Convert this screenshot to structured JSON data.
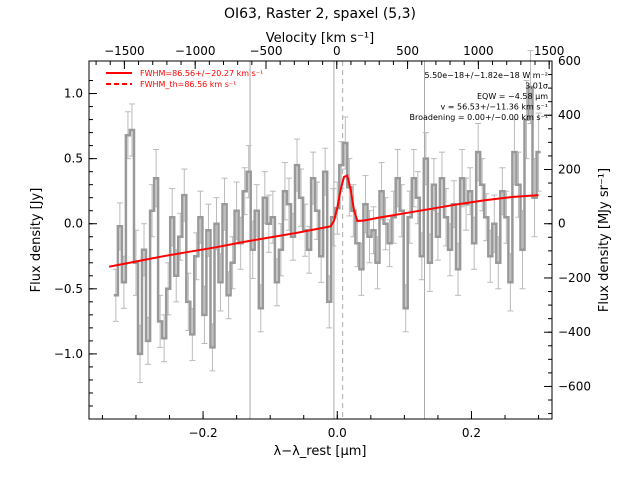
{
  "title": "OI63, Raster 2, spaxel (5,3)",
  "chart_data": {
    "type": "line",
    "title": "OI63, Raster 2, spaxel (5,3)",
    "xlabel": "λ−λ_rest [μm]",
    "ylabel": "Flux density [Jy]",
    "top_axis_label": "Velocity [km s⁻¹]",
    "right_axis_label": "Flux density [MJy sr⁻¹]",
    "xlim": [
      -0.37,
      0.32
    ],
    "ylim": [
      -1.5,
      1.25
    ],
    "top_xlim": [
      -1750,
      1520
    ],
    "right_ylim": [
      -720,
      600
    ],
    "x_ticks": [
      -0.2,
      0.0,
      0.2
    ],
    "x_tick_labels": [
      "−0.2",
      "0.0",
      "0.2"
    ],
    "y_ticks": [
      -1.0,
      -0.5,
      0.0,
      0.5,
      1.0
    ],
    "y_tick_labels": [
      "−1.0",
      "−0.5",
      "0.0",
      "0.5",
      "1.0"
    ],
    "top_ticks": [
      -1500,
      -1000,
      -500,
      0,
      500,
      1000,
      1500
    ],
    "top_tick_labels": [
      "−1500",
      "−1000",
      "−500",
      "0",
      "500",
      "1000",
      "1500"
    ],
    "right_ticks": [
      -600,
      -400,
      -200,
      0,
      200,
      400,
      600
    ],
    "right_tick_labels": [
      "−600",
      "−400",
      "−200",
      "0",
      "200",
      "400",
      "600"
    ],
    "vertical_lines": [
      {
        "x": -0.13,
        "style": "solid",
        "color": "#aaaaaa"
      },
      {
        "x": -0.005,
        "style": "solid",
        "color": "#aaaaaa"
      },
      {
        "x": 0.008,
        "style": "dashed",
        "color": "#aaaaaa"
      },
      {
        "x": 0.13,
        "style": "solid",
        "color": "#aaaaaa"
      }
    ],
    "legend": {
      "placement": "top-left",
      "entries": [
        {
          "label": "FWHM=86.56+/−20.27 km s⁻¹",
          "style": "solid",
          "color": "#ff0000"
        },
        {
          "label": "FWHM_th=86.56 km s⁻¹",
          "style": "dashed",
          "color": "#ff0000"
        }
      ]
    },
    "annotations": [
      "5.50e−18+/−1.82e−18 W m⁻²",
      "3.01σ",
      "EQW = −4.58 μm",
      "v = 56.53+/−11.36 km s⁻¹",
      "Broadening = 0.00+/−0.00 km s⁻¹"
    ],
    "series": [
      {
        "style": "step",
        "color": "#999999",
        "x": [
          -0.33,
          -0.324,
          -0.318,
          -0.312,
          -0.306,
          -0.3,
          -0.294,
          -0.288,
          -0.282,
          -0.276,
          -0.27,
          -0.264,
          -0.258,
          -0.252,
          -0.246,
          -0.24,
          -0.234,
          -0.228,
          -0.222,
          -0.216,
          -0.21,
          -0.204,
          -0.198,
          -0.192,
          -0.186,
          -0.18,
          -0.174,
          -0.168,
          -0.162,
          -0.156,
          -0.15,
          -0.144,
          -0.138,
          -0.132,
          -0.126,
          -0.12,
          -0.114,
          -0.108,
          -0.102,
          -0.096,
          -0.09,
          -0.084,
          -0.078,
          -0.072,
          -0.066,
          -0.06,
          -0.054,
          -0.048,
          -0.042,
          -0.036,
          -0.03,
          -0.024,
          -0.018,
          -0.012,
          -0.006,
          0.0,
          0.006,
          0.012,
          0.018,
          0.024,
          0.03,
          0.036,
          0.042,
          0.048,
          0.054,
          0.06,
          0.066,
          0.072,
          0.078,
          0.084,
          0.09,
          0.096,
          0.102,
          0.108,
          0.114,
          0.12,
          0.126,
          0.132,
          0.138,
          0.144,
          0.15,
          0.156,
          0.162,
          0.168,
          0.174,
          0.18,
          0.186,
          0.192,
          0.198,
          0.204,
          0.21,
          0.216,
          0.222,
          0.228,
          0.234,
          0.24,
          0.246,
          0.252,
          0.258,
          0.264,
          0.27,
          0.276,
          0.282,
          0.288,
          0.294,
          0.3
        ],
        "y": [
          -0.55,
          -0.02,
          -0.45,
          0.68,
          0.72,
          -0.3,
          -1.0,
          -0.2,
          -0.9,
          0.1,
          0.35,
          -0.75,
          -0.88,
          -0.5,
          0.05,
          -0.4,
          -0.1,
          0.22,
          -0.6,
          -0.85,
          -0.25,
          0.05,
          -0.7,
          -0.05,
          -0.95,
          0.0,
          -0.45,
          0.15,
          -0.55,
          -0.3,
          0.1,
          -0.15,
          0.25,
          0.4,
          -0.2,
          0.1,
          -0.65,
          0.2,
          0.0,
          0.05,
          -0.45,
          -0.2,
          0.25,
          0.15,
          -0.1,
          0.45,
          0.2,
          -0.05,
          -0.2,
          0.35,
          0.1,
          -0.25,
          0.4,
          -0.6,
          0.05,
          0.12,
          0.45,
          0.62,
          0.28,
          0.1,
          -0.15,
          -0.35,
          0.15,
          -0.1,
          -0.05,
          -0.3,
          0.25,
          0.0,
          -0.15,
          0.05,
          0.35,
          0.1,
          -0.65,
          0.05,
          0.35,
          0.2,
          -0.25,
          0.5,
          -0.3,
          0.3,
          -0.1,
          0.35,
          0.05,
          -0.2,
          0.15,
          -0.35,
          0.35,
          0.15,
          0.25,
          -0.15,
          0.55,
          0.3,
          0.05,
          -0.25,
          0.0,
          -0.3,
          0.25,
          0.05,
          -0.45,
          0.55,
          0.3,
          -0.2,
          0.8,
          1.05,
          0.2,
          0.55
        ],
        "err": [
          0.2,
          0.18,
          0.2,
          0.18,
          0.2,
          0.25,
          0.22,
          0.2,
          0.18,
          0.2,
          0.22,
          0.2,
          0.18,
          0.2,
          0.22,
          0.2,
          0.18,
          0.2,
          0.22,
          0.2,
          0.18,
          0.2,
          0.22,
          0.2,
          0.18,
          0.2,
          0.22,
          0.2,
          0.18,
          0.2,
          0.22,
          0.2,
          0.18,
          0.2,
          0.22,
          0.2,
          0.18,
          0.2,
          0.22,
          0.2,
          0.18,
          0.2,
          0.22,
          0.2,
          0.18,
          0.2,
          0.22,
          0.2,
          0.18,
          0.2,
          0.22,
          0.2,
          0.18,
          0.2,
          0.22,
          0.2,
          0.18,
          0.2,
          0.22,
          0.2,
          0.18,
          0.2,
          0.22,
          0.2,
          0.18,
          0.2,
          0.22,
          0.2,
          0.18,
          0.2,
          0.22,
          0.2,
          0.18,
          0.2,
          0.22,
          0.2,
          0.18,
          0.2,
          0.22,
          0.2,
          0.18,
          0.2,
          0.22,
          0.2,
          0.18,
          0.2,
          0.22,
          0.2,
          0.18,
          0.2,
          0.22,
          0.2,
          0.18,
          0.2,
          0.22,
          0.2,
          0.18,
          0.2,
          0.22,
          0.25,
          0.25,
          0.3,
          0.3,
          0.28,
          0.3,
          0.3
        ]
      },
      {
        "style": "line",
        "color": "#ff0000",
        "x": [
          -0.34,
          -0.3,
          -0.26,
          -0.22,
          -0.18,
          -0.14,
          -0.1,
          -0.06,
          -0.02,
          -0.01,
          -0.005,
          0.0,
          0.005,
          0.01,
          0.015,
          0.02,
          0.025,
          0.03,
          0.04,
          0.06,
          0.1,
          0.14,
          0.18,
          0.22,
          0.26,
          0.3
        ],
        "y": [
          -0.33,
          -0.29,
          -0.25,
          -0.215,
          -0.18,
          -0.14,
          -0.105,
          -0.07,
          -0.03,
          -0.02,
          0.02,
          0.12,
          0.26,
          0.36,
          0.37,
          0.26,
          0.1,
          0.02,
          0.025,
          0.045,
          0.08,
          0.115,
          0.15,
          0.18,
          0.205,
          0.22
        ]
      }
    ]
  }
}
